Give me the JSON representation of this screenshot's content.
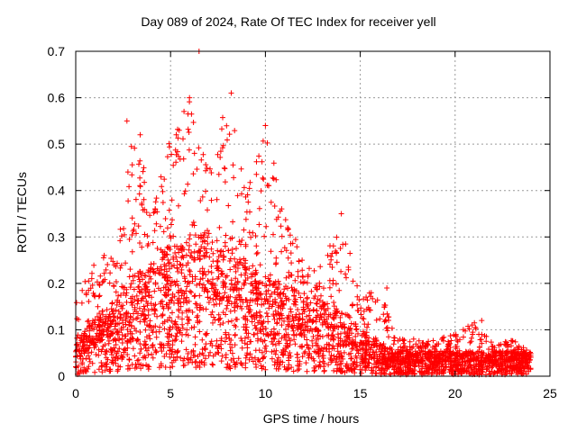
{
  "chart_data": {
    "type": "scatter",
    "title": "Day 089 of 2024, Rate Of TEC Index for receiver yell",
    "xlabel": "GPS time / hours",
    "ylabel": "ROTI / TECUs",
    "xlim": [
      0,
      25
    ],
    "ylim": [
      0,
      0.7
    ],
    "xticks": [
      0,
      5,
      10,
      15,
      20,
      25
    ],
    "yticks": [
      0,
      0.1,
      0.2,
      0.3,
      0.4,
      0.5,
      0.6,
      0.7
    ],
    "ytick_labels": [
      "0",
      "0.1",
      "0.2",
      "0.3",
      "0.4",
      "0.5",
      "0.6",
      "0.7"
    ],
    "xtick_labels": [
      "0",
      "5",
      "10",
      "15",
      "20",
      "25"
    ],
    "grid": true,
    "marker": "+",
    "color": "#ff0000",
    "series": [
      {
        "name": "ROTI",
        "envelope_hours": [
          0,
          1,
          2,
          3,
          4,
          5,
          6,
          7,
          8,
          9,
          10,
          11,
          12,
          13,
          14,
          15,
          16,
          17,
          18,
          19,
          20,
          21,
          22,
          23,
          24
        ],
        "envelope_max": [
          0.17,
          0.25,
          0.27,
          0.55,
          0.38,
          0.52,
          0.6,
          0.44,
          0.61,
          0.4,
          0.55,
          0.36,
          0.25,
          0.24,
          0.35,
          0.17,
          0.19,
          0.08,
          0.08,
          0.08,
          0.09,
          0.12,
          0.07,
          0.08,
          0.05
        ],
        "typical": [
          0.04,
          0.07,
          0.09,
          0.12,
          0.14,
          0.16,
          0.17,
          0.17,
          0.16,
          0.14,
          0.12,
          0.11,
          0.1,
          0.09,
          0.08,
          0.06,
          0.04,
          0.03,
          0.03,
          0.03,
          0.03,
          0.03,
          0.03,
          0.03,
          0.03
        ],
        "notable_points": [
          {
            "x": 6.5,
            "y": 0.7
          },
          {
            "x": 8.2,
            "y": 0.61
          },
          {
            "x": 6.0,
            "y": 0.6
          },
          {
            "x": 2.7,
            "y": 0.55
          },
          {
            "x": 10.0,
            "y": 0.54
          },
          {
            "x": 5.3,
            "y": 0.52
          },
          {
            "x": 3.4,
            "y": 0.52
          },
          {
            "x": 14.0,
            "y": 0.35
          },
          {
            "x": 16.4,
            "y": 0.19
          },
          {
            "x": 21.4,
            "y": 0.12
          }
        ]
      }
    ]
  }
}
